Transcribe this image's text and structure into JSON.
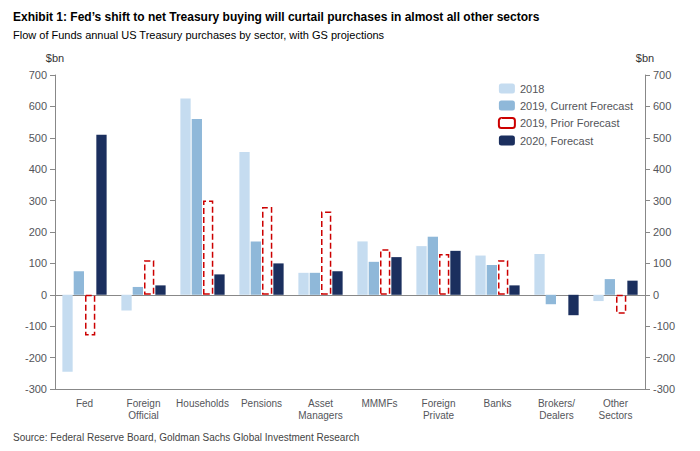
{
  "chart_data": {
    "type": "bar",
    "title": "Exhibit 1: Fed’s shift to net Treasury buying will curtail purchases in almost all other sectors",
    "subtitle": "Flow of Funds annual US Treasury purchases by sector, with GS projections",
    "annotations": [
      "Source: Federal Reserve Board, Goldman Sachs Global Investment Research"
    ],
    "ylabel": "$bn",
    "y2label": "$bn",
    "ylim": [
      -300,
      700
    ],
    "yticks": [
      -300,
      -200,
      -100,
      0,
      100,
      200,
      300,
      400,
      500,
      600,
      700
    ],
    "y2lim": [
      -300,
      700
    ],
    "y2ticks": [
      -300,
      -200,
      -100,
      0,
      100,
      200,
      300,
      400,
      500,
      600,
      700
    ],
    "categories": [
      "Fed",
      "Foreign\nOfficial",
      "Households",
      "Pensions",
      "Asset\nManagers",
      "MMMFs",
      "Foreign\nPrivate",
      "Banks",
      "Brokers/\nDealers",
      "Other\nSectors"
    ],
    "series": [
      {
        "name": "2018",
        "color": "#C5DCF0",
        "values": [
          -245,
          -50,
          625,
          455,
          70,
          170,
          155,
          125,
          130,
          -20
        ]
      },
      {
        "name": "2019, Current Forecast",
        "color": "#8FB8D9",
        "values": [
          75,
          25,
          560,
          170,
          70,
          105,
          185,
          95,
          -30,
          50
        ]
      },
      {
        "name": "2019, Prior Forecast",
        "color": "#CC0000",
        "line_style": "dashed",
        "values": [
          -130,
          110,
          300,
          280,
          265,
          145,
          130,
          110,
          null,
          -60
        ]
      },
      {
        "name": "2020, Forecast",
        "color": "#1B2F5E",
        "values": [
          510,
          30,
          65,
          100,
          75,
          120,
          140,
          30,
          -65,
          45
        ]
      }
    ],
    "legend": "upper right",
    "grid": false
  }
}
